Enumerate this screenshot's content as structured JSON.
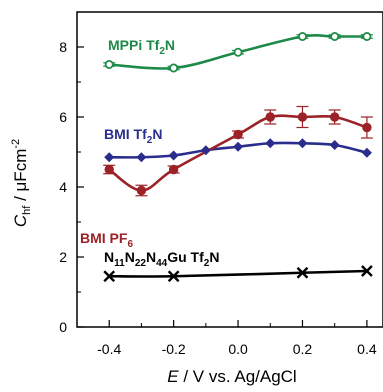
{
  "chart_data": {
    "type": "line",
    "title": "",
    "xlabel": {
      "symbol": "E",
      "rest": " / V vs. Ag/AgCl"
    },
    "ylabel": {
      "symbol": "C",
      "sub": "hf",
      "unit": " / μFcm",
      "sup": "-2"
    },
    "xlim": [
      -0.5,
      0.45
    ],
    "ylim": [
      0,
      9
    ],
    "x_ticks": [
      "-0.4",
      "-0.2",
      "0.0",
      "0.2",
      "0.4"
    ],
    "y_ticks": [
      "0",
      "2",
      "4",
      "6",
      "8"
    ],
    "grid": false,
    "series": [
      {
        "name": "MPPi Tf2N",
        "label_parts": [
          [
            "MPPi Tf",
            false
          ],
          [
            "2",
            true
          ],
          [
            "N",
            false
          ]
        ],
        "color": "#1e8a48",
        "marker": "circle-open",
        "x": [
          -0.4,
          -0.2,
          0.0,
          0.2,
          0.3,
          0.4
        ],
        "y": [
          7.5,
          7.4,
          7.85,
          8.3,
          8.3,
          8.3
        ],
        "err": [
          0.05,
          0.05,
          0.05,
          0.05,
          0.05,
          0.05
        ]
      },
      {
        "name": "BMI Tf2N",
        "label_parts": [
          [
            "BMI Tf",
            false
          ],
          [
            "2",
            true
          ],
          [
            "N",
            false
          ]
        ],
        "color": "#2a2d8c",
        "marker": "diamond",
        "x": [
          -0.4,
          -0.3,
          -0.2,
          -0.1,
          0.0,
          0.1,
          0.2,
          0.3,
          0.4
        ],
        "y": [
          4.85,
          4.85,
          4.9,
          5.05,
          5.15,
          5.25,
          5.25,
          5.2,
          4.98
        ],
        "err": []
      },
      {
        "name": "BMI PF6",
        "label_parts": [
          [
            "BMI PF",
            false
          ],
          [
            "6",
            true
          ]
        ],
        "color": "#9b2226",
        "marker": "circle",
        "x": [
          -0.4,
          -0.3,
          -0.2,
          0.0,
          0.1,
          0.2,
          0.3,
          0.4
        ],
        "y": [
          4.5,
          3.9,
          4.5,
          5.5,
          6.0,
          6.0,
          6.0,
          5.7
        ],
        "err": [
          0.12,
          0.15,
          0.1,
          0.1,
          0.2,
          0.3,
          0.2,
          0.3
        ]
      },
      {
        "name": "N11N22N44Gu Tf2N",
        "label_parts": [
          [
            "N",
            false
          ],
          [
            "11",
            true
          ],
          [
            "N",
            false
          ],
          [
            "22",
            true
          ],
          [
            "N",
            false
          ],
          [
            "44",
            true
          ],
          [
            "Gu Tf",
            false
          ],
          [
            "2",
            true
          ],
          [
            "N",
            false
          ]
        ],
        "color": "#000000",
        "marker": "x",
        "x": [
          -0.4,
          -0.2,
          0.2,
          0.4
        ],
        "y": [
          1.45,
          1.45,
          1.55,
          1.6
        ],
        "err": []
      }
    ]
  }
}
